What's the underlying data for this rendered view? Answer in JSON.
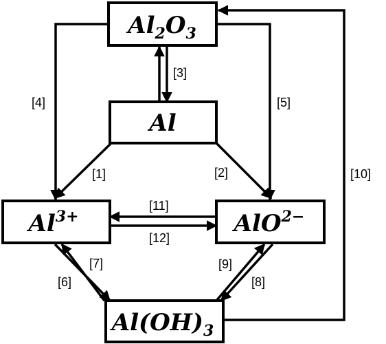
{
  "nodes": {
    "al2o3": {
      "base": "Al",
      "sub1": "2",
      "mid": "O",
      "sub2": "3"
    },
    "al": {
      "base": "Al"
    },
    "al3plus": {
      "base": "Al",
      "sup": "3+"
    },
    "alo2minus": {
      "base": "AlO",
      "sup": "2−"
    },
    "aloh3": {
      "base": "Al(OH)",
      "sub": "3"
    }
  },
  "edges": {
    "e1": "[1]",
    "e2": "[2]",
    "e3": "[3]",
    "e4": "[4]",
    "e5": "[5]",
    "e6": "[6]",
    "e7": "[7]",
    "e8": "[8]",
    "e9": "[9]",
    "e10": "[10]",
    "e11": "[11]",
    "e12": "[12]"
  }
}
